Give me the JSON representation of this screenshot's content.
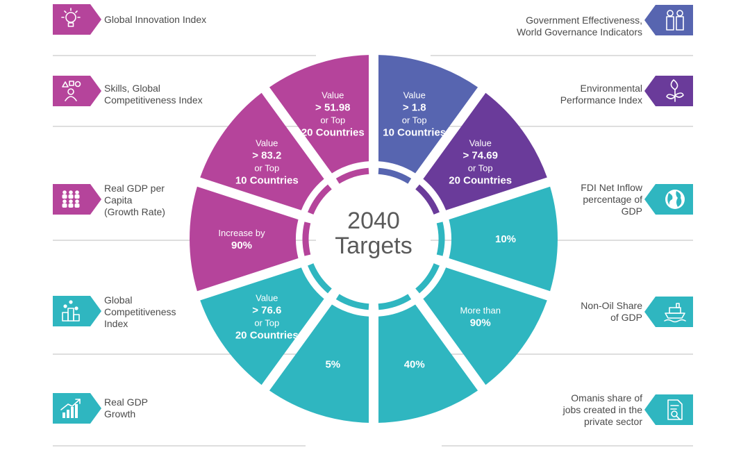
{
  "center": {
    "line1": "2040",
    "line2": "Targets"
  },
  "colors": {
    "magenta": "#b5449b",
    "blue": "#5765b0",
    "purple": "#6a3b9a",
    "teal": "#2fb6c0",
    "label_text": "#4a4a4a",
    "divider": "#bdbdbd"
  },
  "segments": [
    {
      "color": "blue",
      "lines": [
        "Value",
        "> 1.8",
        "or Top",
        "10 Countries"
      ]
    },
    {
      "color": "purple",
      "lines": [
        "Value",
        "> 74.69",
        "or Top",
        "20 Countries"
      ]
    },
    {
      "color": "teal",
      "lines": [
        "10%"
      ]
    },
    {
      "color": "teal",
      "lines": [
        "More than",
        "90%"
      ]
    },
    {
      "color": "teal",
      "lines": [
        "40%"
      ]
    },
    {
      "color": "teal",
      "lines": [
        "5%"
      ]
    },
    {
      "color": "teal",
      "lines": [
        "Value",
        "> 76.6",
        "or Top",
        "20 Countries"
      ]
    },
    {
      "color": "magenta",
      "lines": [
        "Increase by",
        "90%"
      ]
    },
    {
      "color": "magenta",
      "lines": [
        "Value",
        "> 83.2",
        "or Top",
        "10 Countries"
      ]
    },
    {
      "color": "magenta",
      "lines": [
        "Value",
        "> 51.98",
        "or Top",
        "20 Countries"
      ]
    }
  ],
  "indicators": {
    "left": [
      {
        "label": "Global Innovation Index",
        "icon": "lightbulb-icon",
        "color": "magenta"
      },
      {
        "label": "Skills, Global\nCompetitiveness Index",
        "icon": "skills-person-icon",
        "color": "magenta"
      },
      {
        "label": "Real GDP per\nCapita\n(Growth Rate)",
        "icon": "people-group-icon",
        "color": "magenta"
      },
      {
        "label": "Global\nCompetitiveness\nIndex",
        "icon": "podium-icon",
        "color": "teal"
      },
      {
        "label": "Real GDP\nGrowth",
        "icon": "bar-growth-icon",
        "color": "teal"
      }
    ],
    "right": [
      {
        "label": "Government Effectiveness,\nWorld Governance Indicators",
        "icon": "officials-icon",
        "color": "blue"
      },
      {
        "label": "Environmental\nPerformance Index",
        "icon": "plant-icon",
        "color": "purple"
      },
      {
        "label": "FDI Net Inflow\npercentage of\nGDP",
        "icon": "globe-icon",
        "color": "teal"
      },
      {
        "label": "Non-Oil Share\nof GDP",
        "icon": "ship-icon",
        "color": "teal"
      },
      {
        "label": "Omanis share of\njobs created in the\nprivate sector",
        "icon": "document-search-icon",
        "color": "teal"
      }
    ]
  }
}
